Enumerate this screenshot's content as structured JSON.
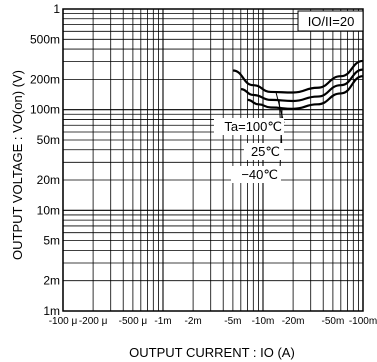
{
  "chart_data": {
    "type": "line",
    "xlabel": "OUTPUT CURRENT : IO (A)",
    "ylabel": "OUTPUT VOLTAGE : VO(on) (V)",
    "x_scale": "log",
    "y_scale": "log",
    "xlim": [
      -0.0001,
      -0.1
    ],
    "ylim": [
      0.001,
      1
    ],
    "x_tick_labels": [
      "-100 μ",
      "-200 μ",
      "-500 μ",
      "-1m",
      "-2m",
      "-5m",
      "-10m",
      "-20m",
      "-50m",
      "-100m"
    ],
    "x_tick_values": [
      -0.0001,
      -0.0002,
      -0.0005,
      -0.001,
      -0.002,
      -0.005,
      -0.01,
      -0.02,
      -0.05,
      -0.1
    ],
    "y_tick_labels": [
      "1",
      "500m",
      "200m",
      "100m",
      "50m",
      "20m",
      "10m",
      "5m",
      "2m",
      "1m"
    ],
    "y_tick_values": [
      1,
      0.5,
      0.2,
      0.1,
      0.05,
      0.02,
      0.01,
      0.005,
      0.002,
      0.001
    ],
    "grid": true,
    "condition": "IO/II=20",
    "series": [
      {
        "name": "Ta=100℃",
        "x": [
          -0.005,
          -0.008,
          -0.012,
          -0.02,
          -0.035,
          -0.06,
          -0.1
        ],
        "y": [
          0.245,
          0.175,
          0.15,
          0.148,
          0.165,
          0.215,
          0.305
        ]
      },
      {
        "name": "25℃",
        "x": [
          -0.006,
          -0.008,
          -0.012,
          -0.02,
          -0.035,
          -0.06,
          -0.1
        ],
        "y": [
          0.16,
          0.14,
          0.125,
          0.122,
          0.135,
          0.175,
          0.25
        ]
      },
      {
        "name": "−40℃",
        "x": [
          -0.007,
          -0.009,
          -0.012,
          -0.02,
          -0.035,
          -0.06,
          -0.1
        ],
        "y": [
          0.125,
          0.113,
          0.105,
          0.102,
          0.113,
          0.145,
          0.215
        ]
      }
    ]
  }
}
